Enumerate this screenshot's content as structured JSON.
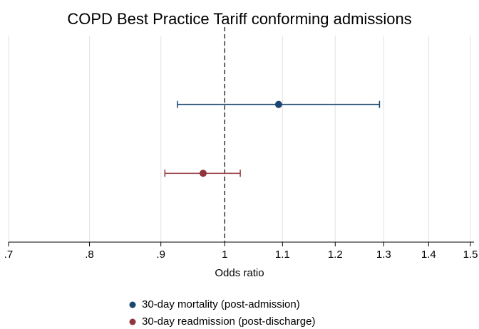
{
  "chart_data": {
    "type": "forest",
    "title": "COPD Best Practice Tariff conforming admissions",
    "x_label": "Odds ratio",
    "xscale": "log",
    "xlim": [
      0.7,
      1.5
    ],
    "xticks": [
      {
        "value": 0.7,
        "label": ".7"
      },
      {
        "value": 0.8,
        "label": ".8"
      },
      {
        "value": 0.9,
        "label": ".9"
      },
      1,
      1.1,
      1.2,
      1.3,
      1.4,
      1.5
    ],
    "grid": true,
    "reference_line": 1,
    "legend": "bottom",
    "series": [
      {
        "name": "30-day mortality (post-admission)",
        "color": "#1a476f",
        "values": [
          1.093
        ],
        "lower": [
          0.925
        ],
        "upper": [
          1.291
        ]
      },
      {
        "name": "30-day readmission (post-discharge)",
        "color": "#90353b",
        "values": [
          0.965
        ],
        "lower": [
          0.906
        ],
        "upper": [
          1.026
        ]
      }
    ]
  }
}
